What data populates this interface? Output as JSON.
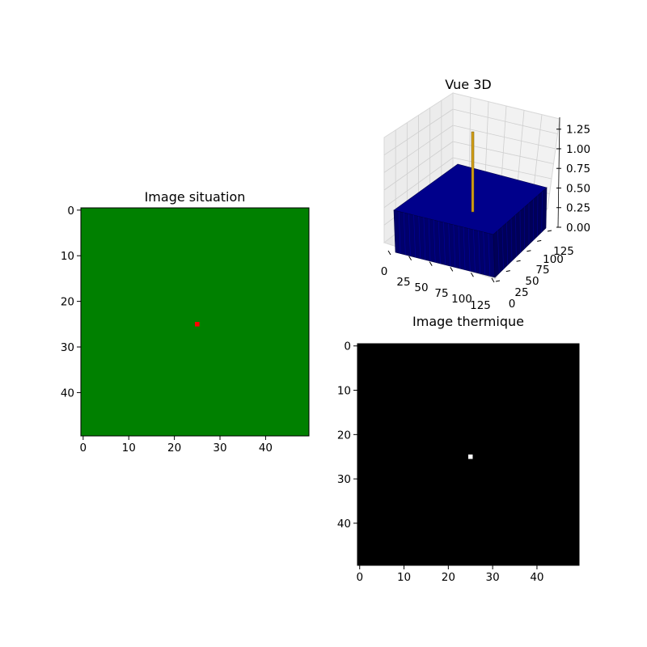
{
  "chart_data": [
    {
      "type": "heatmap",
      "title": "Image situation",
      "xlim": [
        -0.5,
        49.5
      ],
      "ylim": [
        49.5,
        -0.5
      ],
      "xticks": [
        0,
        10,
        20,
        30,
        40
      ],
      "yticks": [
        0,
        10,
        20,
        30,
        40
      ],
      "background_color": "#008000",
      "hot_pixel": {
        "x": 25,
        "y": 25,
        "color": "#ff0000"
      }
    },
    {
      "type": "surface3d",
      "title": "Vue 3D",
      "xticks": [
        0,
        25,
        50,
        75,
        100,
        125
      ],
      "yticks": [
        0,
        25,
        50,
        75,
        100,
        125
      ],
      "zticks": [
        "0.00",
        "0.25",
        "0.50",
        "0.75",
        "1.00",
        "1.25"
      ],
      "zlim": [
        0,
        1.35
      ],
      "base_level": 0.5,
      "spike": {
        "x": 62,
        "y": 62,
        "z": 1.25
      },
      "surface_color": "#00007a",
      "spike_color": "#d4a017"
    },
    {
      "type": "heatmap",
      "title": "Image thermique",
      "xlim": [
        -0.5,
        49.5
      ],
      "ylim": [
        49.5,
        -0.5
      ],
      "xticks": [
        0,
        10,
        20,
        30,
        40
      ],
      "yticks": [
        0,
        10,
        20,
        30,
        40
      ],
      "background_color": "#000000",
      "hot_pixel": {
        "x": 25,
        "y": 25,
        "color": "#ffffff"
      }
    }
  ]
}
